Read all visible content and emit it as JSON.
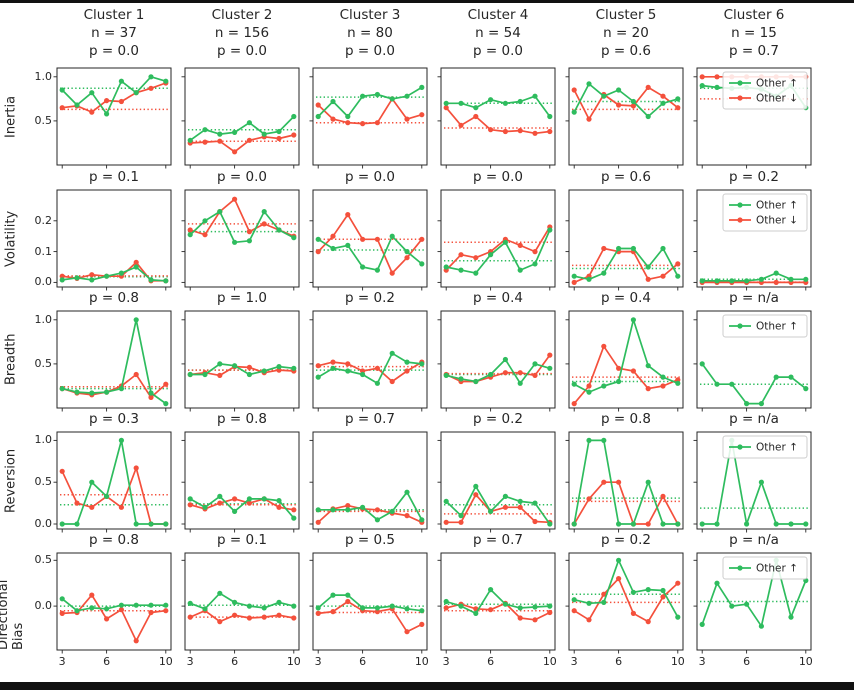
{
  "figure": {
    "legend": {
      "up_label": "Other ↑",
      "down_label": "Other ↓"
    },
    "colors": {
      "up": "#2ebc5e",
      "down": "#f4503c",
      "axis": "#262626"
    }
  },
  "chart_data": {
    "type": "line",
    "x": [
      3,
      4,
      5,
      6,
      7,
      8,
      9,
      10
    ],
    "x_ticks": [
      3,
      6,
      10
    ],
    "legend_position": "upper-right-of-last-column",
    "grid": false,
    "columns": [
      {
        "title": "Cluster 1",
        "n": "n = 37"
      },
      {
        "title": "Cluster 2",
        "n": "n = 156"
      },
      {
        "title": "Cluster 3",
        "n": "n = 80"
      },
      {
        "title": "Cluster 4",
        "n": "n = 54"
      },
      {
        "title": "Cluster 5",
        "n": "n = 20"
      },
      {
        "title": "Cluster 6",
        "n": "n = 15"
      }
    ],
    "rows": [
      {
        "metric": "Inertia",
        "yticks": [
          0.5,
          1.0
        ],
        "ylim": [
          0,
          1.1
        ],
        "cells": [
          {
            "p": "p = 0.0",
            "up": [
              0.85,
              0.68,
              0.82,
              0.58,
              0.95,
              0.82,
              1.0,
              0.95
            ],
            "down": [
              0.65,
              0.67,
              0.6,
              0.73,
              0.72,
              0.82,
              0.87,
              0.93
            ],
            "up_mean": 0.87,
            "down_mean": 0.63,
            "legend": null
          },
          {
            "p": "p = 0.0",
            "up": [
              0.28,
              0.4,
              0.35,
              0.37,
              0.48,
              0.35,
              0.38,
              0.55
            ],
            "down": [
              0.25,
              0.26,
              0.27,
              0.15,
              0.28,
              0.32,
              0.3,
              0.34
            ],
            "up_mean": 0.4,
            "down_mean": 0.27,
            "legend": null
          },
          {
            "p": "p = 0.0",
            "up": [
              0.55,
              0.72,
              0.55,
              0.78,
              0.8,
              0.75,
              0.78,
              0.88
            ],
            "down": [
              0.68,
              0.52,
              0.48,
              0.47,
              0.48,
              0.75,
              0.52,
              0.57
            ],
            "up_mean": 0.77,
            "down_mean": 0.48,
            "legend": null
          },
          {
            "p": "p = 0.0",
            "up": [
              0.7,
              0.7,
              0.65,
              0.74,
              0.7,
              0.72,
              0.78,
              0.55
            ],
            "down": [
              0.65,
              0.45,
              0.55,
              0.4,
              0.38,
              0.39,
              0.36,
              0.38
            ],
            "up_mean": 0.7,
            "down_mean": 0.42,
            "legend": null
          },
          {
            "p": "p = 0.6",
            "up": [
              0.6,
              0.92,
              0.78,
              0.85,
              0.72,
              0.55,
              0.7,
              0.75
            ],
            "down": [
              0.85,
              0.52,
              0.8,
              0.68,
              0.67,
              0.88,
              0.78,
              0.65
            ],
            "up_mean": 0.72,
            "down_mean": 0.63,
            "legend": null
          },
          {
            "p": "p = 0.7",
            "up": [
              0.9,
              0.88,
              0.87,
              0.88,
              0.86,
              0.78,
              0.9,
              0.65
            ],
            "down": [
              1.0,
              1.0,
              1.0,
              1.0,
              1.0,
              1.0,
              1.0,
              1.0
            ],
            "up_mean": 0.87,
            "down_mean": 0.75,
            "legend": "both"
          }
        ]
      },
      {
        "metric": "Volatility",
        "yticks": [
          0.0,
          0.1,
          0.2
        ],
        "ylim": [
          -0.015,
          0.3
        ],
        "cells": [
          {
            "p": "p = 0.1",
            "up": [
              0.008,
              0.015,
              0.008,
              0.02,
              0.03,
              0.05,
              0.008,
              0.005
            ],
            "down": [
              0.02,
              0.013,
              0.025,
              0.02,
              0.02,
              0.065,
              0.005,
              0.005
            ],
            "up_mean": 0.018,
            "down_mean": 0.021,
            "legend": null
          },
          {
            "p": "p = 0.0",
            "up": [
              0.155,
              0.2,
              0.23,
              0.13,
              0.135,
              0.23,
              0.17,
              0.145
            ],
            "down": [
              0.17,
              0.155,
              0.23,
              0.27,
              0.165,
              0.19,
              0.17,
              0.15
            ],
            "up_mean": 0.165,
            "down_mean": 0.19,
            "legend": null
          },
          {
            "p": "p = 0.0",
            "up": [
              0.14,
              0.11,
              0.12,
              0.05,
              0.04,
              0.15,
              0.1,
              0.06
            ],
            "down": [
              0.1,
              0.15,
              0.22,
              0.14,
              0.14,
              0.03,
              0.08,
              0.14
            ],
            "up_mean": 0.105,
            "down_mean": 0.14,
            "legend": null
          },
          {
            "p": "p = 0.0",
            "up": [
              0.05,
              0.04,
              0.03,
              0.09,
              0.13,
              0.04,
              0.06,
              0.17
            ],
            "down": [
              0.04,
              0.09,
              0.08,
              0.1,
              0.14,
              0.12,
              0.1,
              0.18
            ],
            "up_mean": 0.07,
            "down_mean": 0.13,
            "legend": null
          },
          {
            "p": "p = 0.6",
            "up": [
              0.02,
              0.01,
              0.03,
              0.11,
              0.11,
              0.05,
              0.11,
              0.02
            ],
            "down": [
              0.0,
              0.02,
              0.11,
              0.1,
              0.1,
              0.01,
              0.02,
              0.06
            ],
            "up_mean": 0.045,
            "down_mean": 0.055,
            "legend": null
          },
          {
            "p": "p = 0.2",
            "up": [
              0.005,
              0.005,
              0.005,
              0.005,
              0.01,
              0.03,
              0.01,
              0.01
            ],
            "down": [
              0,
              0,
              0,
              0,
              0,
              0,
              0,
              0
            ],
            "up_mean": 0.01,
            "down_mean": 0.001,
            "legend": "both"
          }
        ]
      },
      {
        "metric": "Breadth",
        "yticks": [
          0.5,
          1.0
        ],
        "ylim": [
          0,
          1.1
        ],
        "cells": [
          {
            "p": "p = 0.8",
            "up": [
              0.22,
              0.18,
              0.17,
              0.18,
              0.22,
              1.0,
              0.17,
              0.05
            ],
            "down": [
              0.22,
              0.17,
              0.15,
              0.18,
              0.25,
              0.38,
              0.12,
              0.27
            ],
            "up_mean": 0.22,
            "down_mean": 0.24,
            "legend": null
          },
          {
            "p": "p = 1.0",
            "up": [
              0.38,
              0.38,
              0.5,
              0.48,
              0.38,
              0.42,
              0.47,
              0.45
            ],
            "down": [
              0.38,
              0.4,
              0.37,
              0.47,
              0.46,
              0.4,
              0.43,
              0.42
            ],
            "up_mean": 0.43,
            "down_mean": 0.43,
            "legend": null
          },
          {
            "p": "p = 0.2",
            "up": [
              0.35,
              0.45,
              0.42,
              0.38,
              0.28,
              0.62,
              0.52,
              0.5
            ],
            "down": [
              0.48,
              0.52,
              0.5,
              0.42,
              0.45,
              0.3,
              0.42,
              0.52
            ],
            "up_mean": 0.43,
            "down_mean": 0.47,
            "legend": null
          },
          {
            "p": "p = 0.4",
            "up": [
              0.37,
              0.33,
              0.3,
              0.38,
              0.55,
              0.28,
              0.5,
              0.45
            ],
            "down": [
              0.38,
              0.3,
              0.3,
              0.35,
              0.4,
              0.4,
              0.37,
              0.6
            ],
            "up_mean": 0.38,
            "down_mean": 0.39,
            "legend": null
          },
          {
            "p": "p = 0.4",
            "up": [
              0.27,
              0.18,
              0.25,
              0.3,
              1.0,
              0.48,
              0.35,
              0.28
            ],
            "down": [
              0.05,
              0.25,
              0.7,
              0.45,
              0.42,
              0.22,
              0.25,
              0.32
            ],
            "up_mean": 0.3,
            "down_mean": 0.35,
            "legend": null
          },
          {
            "p": "p = n/a",
            "up": [
              0.5,
              0.27,
              0.27,
              0.05,
              0.05,
              0.35,
              0.35,
              0.22
            ],
            "down": null,
            "up_mean": 0.27,
            "down_mean": null,
            "legend": "up"
          }
        ]
      },
      {
        "metric": "Reversion",
        "yticks": [
          0.0,
          0.5,
          1.0
        ],
        "ylim": [
          -0.06,
          1.1
        ],
        "cells": [
          {
            "p": "p = 0.3",
            "up": [
              0.0,
              0.0,
              0.5,
              0.33,
              1.0,
              0.0,
              0.0,
              0.0
            ],
            "down": [
              0.63,
              0.25,
              0.2,
              0.33,
              0.2,
              0.67,
              0.0,
              0.0
            ],
            "up_mean": 0.23,
            "down_mean": 0.35,
            "legend": null
          },
          {
            "p": "p = 0.8",
            "up": [
              0.3,
              0.2,
              0.33,
              0.15,
              0.3,
              0.3,
              0.28,
              0.07
            ],
            "down": [
              0.23,
              0.18,
              0.25,
              0.3,
              0.25,
              0.3,
              0.2,
              0.17
            ],
            "up_mean": 0.24,
            "down_mean": 0.23,
            "legend": null
          },
          {
            "p": "p = 0.7",
            "up": [
              0.17,
              0.17,
              0.17,
              0.2,
              0.05,
              0.15,
              0.38,
              0.05
            ],
            "down": [
              0.02,
              0.18,
              0.22,
              0.18,
              0.17,
              0.13,
              0.1,
              0.02
            ],
            "up_mean": 0.17,
            "down_mean": 0.15,
            "legend": null
          },
          {
            "p": "p = 0.2",
            "up": [
              0.27,
              0.1,
              0.45,
              0.15,
              0.33,
              0.27,
              0.25,
              0.0
            ],
            "down": [
              0.02,
              0.02,
              0.35,
              0.15,
              0.2,
              0.2,
              0.03,
              0.02
            ],
            "up_mean": 0.23,
            "down_mean": 0.12,
            "legend": null
          },
          {
            "p": "p = 0.8",
            "up": [
              0.0,
              1.0,
              1.0,
              0.0,
              0.0,
              0.5,
              0.0,
              0.0
            ],
            "down": [
              0.0,
              0.3,
              0.5,
              0.5,
              0.0,
              0.0,
              0.33,
              0.0
            ],
            "up_mean": 0.31,
            "down_mean": 0.27,
            "legend": null
          },
          {
            "p": "p = n/a",
            "up": [
              0.0,
              0.0,
              1.0,
              0.0,
              0.5,
              0.0,
              0.0,
              0.0
            ],
            "down": null,
            "up_mean": 0.19,
            "down_mean": null,
            "legend": "up"
          }
        ]
      },
      {
        "metric": "Directional Bias",
        "yticks": [
          0.0,
          0.5
        ],
        "ylim": [
          -0.48,
          0.58
        ],
        "cells": [
          {
            "p": "p = 0.8",
            "up": [
              0.08,
              -0.05,
              -0.02,
              -0.03,
              0.01,
              0.01,
              0.01,
              0.01
            ],
            "down": [
              -0.08,
              -0.07,
              0.12,
              -0.14,
              -0.04,
              -0.38,
              -0.07,
              -0.05
            ],
            "up_mean": 0.0,
            "down_mean": -0.05,
            "legend": null
          },
          {
            "p": "p = 0.1",
            "up": [
              0.03,
              -0.03,
              0.14,
              0.04,
              0.0,
              -0.02,
              0.04,
              0.0
            ],
            "down": [
              -0.12,
              -0.05,
              -0.17,
              -0.1,
              -0.13,
              -0.12,
              -0.1,
              -0.13
            ],
            "up_mean": 0.01,
            "down_mean": -0.12,
            "legend": null
          },
          {
            "p": "p = 0.5",
            "up": [
              -0.02,
              0.12,
              0.12,
              -0.02,
              -0.02,
              0.0,
              -0.03,
              -0.05
            ],
            "down": [
              -0.08,
              -0.06,
              0.05,
              -0.05,
              -0.06,
              -0.03,
              -0.28,
              -0.2
            ],
            "up_mean": 0.0,
            "down_mean": -0.07,
            "legend": null
          },
          {
            "p": "p = 0.7",
            "up": [
              0.05,
              0.0,
              -0.08,
              0.18,
              0.02,
              -0.02,
              -0.01,
              0.0
            ],
            "down": [
              -0.02,
              0.02,
              -0.03,
              -0.04,
              0.03,
              -0.13,
              -0.15,
              -0.07
            ],
            "up_mean": 0.02,
            "down_mean": -0.05,
            "legend": null
          },
          {
            "p": "p = 0.2",
            "up": [
              0.07,
              0.03,
              0.04,
              0.5,
              0.15,
              0.18,
              0.17,
              -0.12
            ],
            "down": [
              -0.05,
              -0.15,
              0.13,
              0.3,
              -0.08,
              -0.17,
              0.1,
              0.25
            ],
            "up_mean": 0.13,
            "down_mean": 0.04,
            "legend": null
          },
          {
            "p": "p = n/a",
            "up": [
              -0.2,
              0.25,
              0.0,
              0.02,
              -0.22,
              0.5,
              -0.12,
              0.28
            ],
            "down": null,
            "up_mean": 0.05,
            "down_mean": null,
            "legend": "up"
          }
        ]
      }
    ]
  }
}
